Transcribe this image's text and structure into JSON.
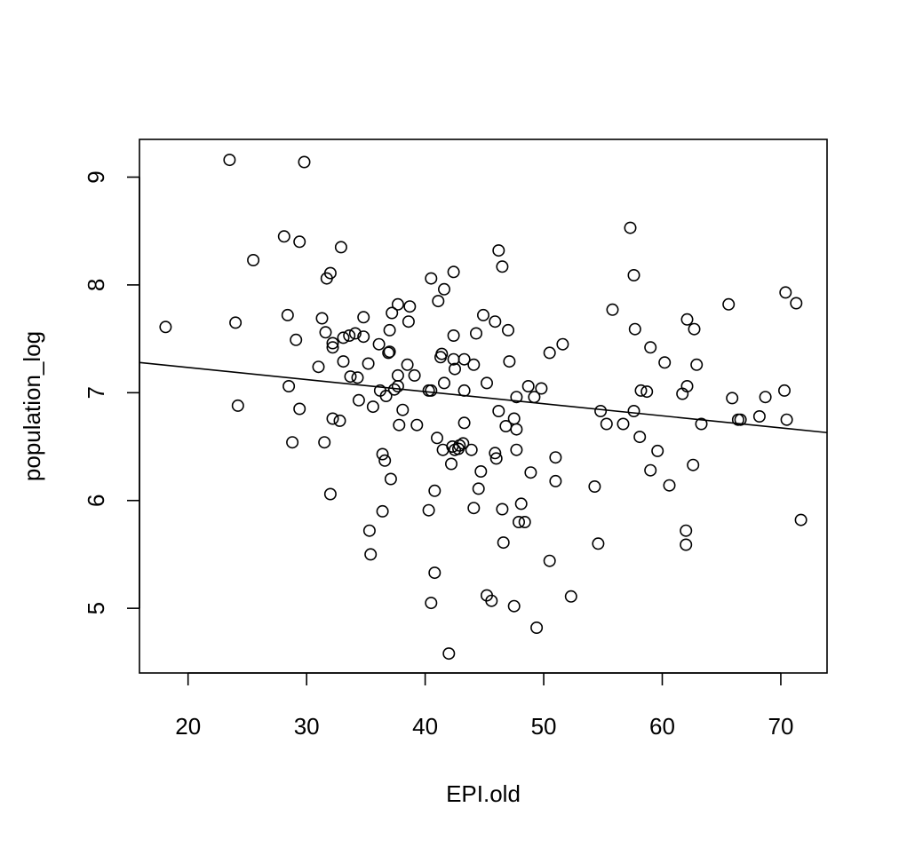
{
  "chart_data": {
    "type": "scatter",
    "xlabel": "EPI.old",
    "ylabel": "population_log",
    "xlim": [
      15.9,
      73.9
    ],
    "ylim": [
      4.4,
      9.35
    ],
    "grid": false,
    "x_ticks": [
      20,
      30,
      40,
      50,
      60,
      70
    ],
    "y_ticks": [
      5,
      6,
      7,
      8,
      9
    ],
    "x_tick_labels": [
      "20",
      "30",
      "40",
      "50",
      "60",
      "70"
    ],
    "y_tick_labels": [
      "5",
      "6",
      "7",
      "8",
      "9"
    ],
    "colors": {
      "points": "#000000",
      "line": "#000000",
      "frame": "#000000"
    },
    "regression_line": {
      "x": [
        15.9,
        73.9
      ],
      "y": [
        7.28,
        6.63
      ]
    },
    "series": [
      {
        "marker": "open-circle",
        "points": [
          [
            18.1,
            7.61
          ],
          [
            23.5,
            9.16
          ],
          [
            24.0,
            7.65
          ],
          [
            24.2,
            6.88
          ],
          [
            25.5,
            8.23
          ],
          [
            28.1,
            8.45
          ],
          [
            28.4,
            7.72
          ],
          [
            28.5,
            7.06
          ],
          [
            28.8,
            6.54
          ],
          [
            29.1,
            7.49
          ],
          [
            29.4,
            6.85
          ],
          [
            29.4,
            8.4
          ],
          [
            29.8,
            9.14
          ],
          [
            31.0,
            7.24
          ],
          [
            31.3,
            7.69
          ],
          [
            31.5,
            6.54
          ],
          [
            31.6,
            7.56
          ],
          [
            31.7,
            8.06
          ],
          [
            32.0,
            8.11
          ],
          [
            32.0,
            6.06
          ],
          [
            32.2,
            7.46
          ],
          [
            32.2,
            7.42
          ],
          [
            32.2,
            6.76
          ],
          [
            32.8,
            6.74
          ],
          [
            32.9,
            8.35
          ],
          [
            33.1,
            7.51
          ],
          [
            33.1,
            7.29
          ],
          [
            33.6,
            7.53
          ],
          [
            33.7,
            7.15
          ],
          [
            34.1,
            7.55
          ],
          [
            34.3,
            7.14
          ],
          [
            34.4,
            6.93
          ],
          [
            34.8,
            7.7
          ],
          [
            34.8,
            7.52
          ],
          [
            35.2,
            7.27
          ],
          [
            35.3,
            5.72
          ],
          [
            35.4,
            5.5
          ],
          [
            35.6,
            6.87
          ],
          [
            36.1,
            7.45
          ],
          [
            36.2,
            7.02
          ],
          [
            36.4,
            6.43
          ],
          [
            36.4,
            5.9
          ],
          [
            36.6,
            6.37
          ],
          [
            36.7,
            6.97
          ],
          [
            36.9,
            7.37
          ],
          [
            37.0,
            7.38
          ],
          [
            37.0,
            7.58
          ],
          [
            37.1,
            6.2
          ],
          [
            37.2,
            7.74
          ],
          [
            37.4,
            7.03
          ],
          [
            37.7,
            7.82
          ],
          [
            37.7,
            7.16
          ],
          [
            37.7,
            7.06
          ],
          [
            37.8,
            6.7
          ],
          [
            38.1,
            6.84
          ],
          [
            38.5,
            7.26
          ],
          [
            38.6,
            7.66
          ],
          [
            38.7,
            7.8
          ],
          [
            39.1,
            7.16
          ],
          [
            39.3,
            6.7
          ],
          [
            40.3,
            7.02
          ],
          [
            40.3,
            5.91
          ],
          [
            40.5,
            8.06
          ],
          [
            40.5,
            7.02
          ],
          [
            40.5,
            5.05
          ],
          [
            40.8,
            6.09
          ],
          [
            40.8,
            5.33
          ],
          [
            41.0,
            6.58
          ],
          [
            41.1,
            7.85
          ],
          [
            41.3,
            7.33
          ],
          [
            41.4,
            7.36
          ],
          [
            41.5,
            6.47
          ],
          [
            41.6,
            7.09
          ],
          [
            41.6,
            7.96
          ],
          [
            42.0,
            4.58
          ],
          [
            42.2,
            6.34
          ],
          [
            42.3,
            6.5
          ],
          [
            42.4,
            7.53
          ],
          [
            42.4,
            7.31
          ],
          [
            42.4,
            8.12
          ],
          [
            42.5,
            7.22
          ],
          [
            42.5,
            6.47
          ],
          [
            42.8,
            6.48
          ],
          [
            42.9,
            6.51
          ],
          [
            43.2,
            6.53
          ],
          [
            43.3,
            7.31
          ],
          [
            43.3,
            6.72
          ],
          [
            43.3,
            7.02
          ],
          [
            43.9,
            6.47
          ],
          [
            44.1,
            5.93
          ],
          [
            44.1,
            7.26
          ],
          [
            44.3,
            7.55
          ],
          [
            44.5,
            6.11
          ],
          [
            44.7,
            6.27
          ],
          [
            44.9,
            7.72
          ],
          [
            45.2,
            5.12
          ],
          [
            45.2,
            7.09
          ],
          [
            45.6,
            5.07
          ],
          [
            45.9,
            7.66
          ],
          [
            45.9,
            6.44
          ],
          [
            46.0,
            6.39
          ],
          [
            46.2,
            8.32
          ],
          [
            46.2,
            6.83
          ],
          [
            46.5,
            5.92
          ],
          [
            46.5,
            8.17
          ],
          [
            46.6,
            5.61
          ],
          [
            46.8,
            6.69
          ],
          [
            47.0,
            7.58
          ],
          [
            47.1,
            7.29
          ],
          [
            47.5,
            6.76
          ],
          [
            47.5,
            5.02
          ],
          [
            47.7,
            6.96
          ],
          [
            47.7,
            6.66
          ],
          [
            47.7,
            6.47
          ],
          [
            47.9,
            5.8
          ],
          [
            48.1,
            5.97
          ],
          [
            48.4,
            5.8
          ],
          [
            48.7,
            7.06
          ],
          [
            48.9,
            6.26
          ],
          [
            49.2,
            6.96
          ],
          [
            49.4,
            4.82
          ],
          [
            49.8,
            7.04
          ],
          [
            50.5,
            7.37
          ],
          [
            50.5,
            5.44
          ],
          [
            51.0,
            6.4
          ],
          [
            51.0,
            6.18
          ],
          [
            51.6,
            7.45
          ],
          [
            52.3,
            5.11
          ],
          [
            54.3,
            6.13
          ],
          [
            54.6,
            5.6
          ],
          [
            54.8,
            6.83
          ],
          [
            55.3,
            6.71
          ],
          [
            55.8,
            7.77
          ],
          [
            56.7,
            6.71
          ],
          [
            57.3,
            8.53
          ],
          [
            57.6,
            6.83
          ],
          [
            57.6,
            8.09
          ],
          [
            57.7,
            7.59
          ],
          [
            58.1,
            6.59
          ],
          [
            58.2,
            7.02
          ],
          [
            58.7,
            7.01
          ],
          [
            59.0,
            7.42
          ],
          [
            59.0,
            6.28
          ],
          [
            59.6,
            6.46
          ],
          [
            60.2,
            7.28
          ],
          [
            60.6,
            6.14
          ],
          [
            61.7,
            6.99
          ],
          [
            62.0,
            5.72
          ],
          [
            62.0,
            5.59
          ],
          [
            62.1,
            7.06
          ],
          [
            62.1,
            7.68
          ],
          [
            62.6,
            6.33
          ],
          [
            62.7,
            7.59
          ],
          [
            62.9,
            7.26
          ],
          [
            63.3,
            6.71
          ],
          [
            65.6,
            7.82
          ],
          [
            65.9,
            6.95
          ],
          [
            66.4,
            6.75
          ],
          [
            66.6,
            6.75
          ],
          [
            68.2,
            6.78
          ],
          [
            68.7,
            6.96
          ],
          [
            70.3,
            7.02
          ],
          [
            70.4,
            7.93
          ],
          [
            70.5,
            6.75
          ],
          [
            71.3,
            7.83
          ],
          [
            71.7,
            5.82
          ]
        ]
      }
    ]
  }
}
